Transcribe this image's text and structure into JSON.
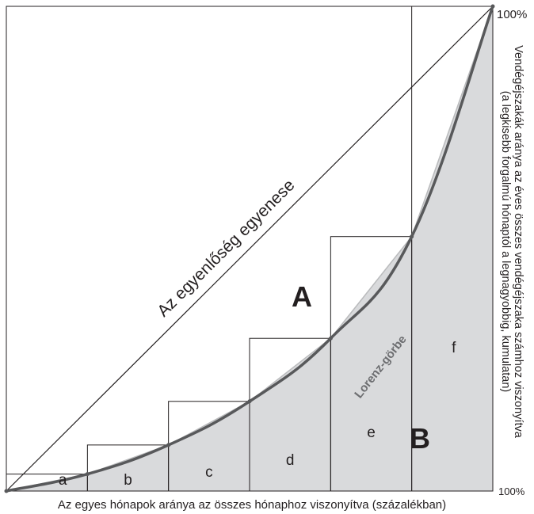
{
  "diagram": {
    "equality_line_label": "Az egyenlőség egyenese",
    "lorenz_label": "Lorenz-görbe",
    "area_a_label": "A",
    "area_b_label": "B",
    "segment_labels": [
      "a",
      "b",
      "c",
      "d",
      "e",
      "f"
    ],
    "top_percent_label": "100%",
    "bottom_percent_label": "100%",
    "x_axis_label": "Az egyes hónapok aránya az összes hónaphoz viszonyítva (százalékban)",
    "y_axis_label_line1": "Vendégéjszakák aránya az éves összes vendégéjszaka számhoz viszonyítva",
    "y_axis_label_line2": "(a legkisebb forgalmú hónaptól a legnagyobbig, kumulatan)"
  },
  "chart_data": {
    "type": "area",
    "x": [
      0,
      16.67,
      33.33,
      50,
      66.67,
      83.33,
      100
    ],
    "lorenz_cumulative_y": [
      0,
      3.5,
      9.5,
      18.5,
      31.5,
      52.5,
      100
    ],
    "equality_line_y": [
      0,
      16.67,
      33.33,
      50,
      66.67,
      83.33,
      100
    ],
    "xlim": [
      0,
      100
    ],
    "ylim": [
      0,
      100
    ],
    "colors": {
      "area_fill": "#d9dadc",
      "lorenz_curve": "#58595b",
      "lines": "#231f20"
    }
  }
}
